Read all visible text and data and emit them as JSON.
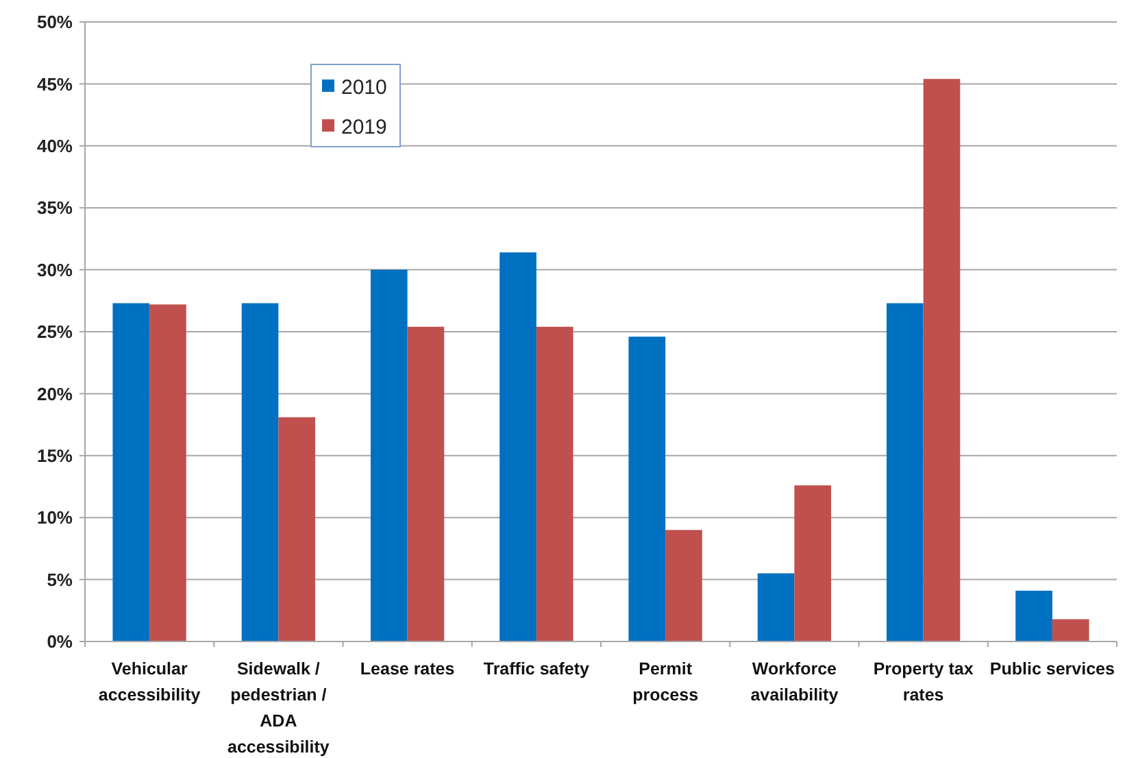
{
  "chart_data": {
    "type": "bar",
    "categories": [
      "Vehicular\naccessibility",
      "Sidewalk /\npedestrian /\nADA\naccessibility",
      "Lease rates",
      "Traffic safety",
      "Permit\nprocess",
      "Workforce\navailability",
      "Property tax\nrates",
      "Public services"
    ],
    "series": [
      {
        "name": "2010",
        "color": "#0070c0",
        "values": [
          27.3,
          27.3,
          30.0,
          31.4,
          24.6,
          5.5,
          27.3,
          4.1
        ]
      },
      {
        "name": "2019",
        "color": "#c0504d",
        "values": [
          27.2,
          18.1,
          25.4,
          25.4,
          9.0,
          12.6,
          45.4,
          1.8
        ]
      }
    ],
    "ylim": [
      0,
      50
    ],
    "yticks": [
      {
        "value": 0,
        "label": "0%"
      },
      {
        "value": 5,
        "label": "5%"
      },
      {
        "value": 10,
        "label": "10%"
      },
      {
        "value": 15,
        "label": "15%"
      },
      {
        "value": 20,
        "label": "20%"
      },
      {
        "value": 25,
        "label": "25%"
      },
      {
        "value": 30,
        "label": "30%"
      },
      {
        "value": 35,
        "label": "35%"
      },
      {
        "value": 40,
        "label": "40%"
      },
      {
        "value": 45,
        "label": "45%"
      },
      {
        "value": 50,
        "label": "50%"
      }
    ],
    "grid": "y",
    "legend": "top left"
  }
}
